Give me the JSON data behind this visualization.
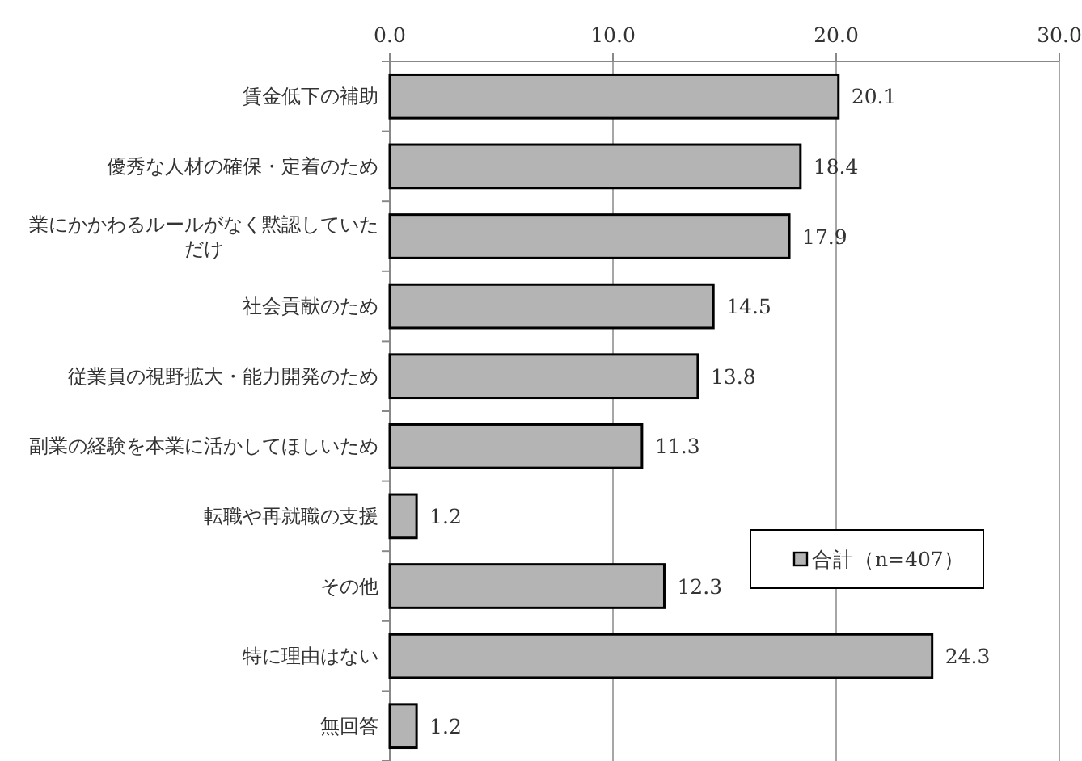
{
  "chart_data": {
    "type": "bar",
    "orientation": "horizontal",
    "categories": [
      "賃金低下の補助",
      "優秀な人材の確保・定着のため",
      "業にかかわるルールがなく黙認していただけ",
      "社会貢献のため",
      "従業員の視野拡大・能力開発のため",
      "副業の経験を本業に活かしてほしいため",
      "転職や再就職の支援",
      "その他",
      "特に理由はない",
      "無回答"
    ],
    "series": [
      {
        "name": "合計（n=407）",
        "color": "#b4b4b4",
        "values": [
          20.1,
          18.4,
          17.9,
          14.5,
          13.8,
          11.3,
          1.2,
          12.3,
          24.3,
          1.2
        ]
      }
    ],
    "xlim": [
      0,
      30
    ],
    "xticks": [
      {
        "value": 0,
        "label": "0.0"
      },
      {
        "value": 10,
        "label": "10.0"
      },
      {
        "value": 20,
        "label": "20.0"
      },
      {
        "value": 30,
        "label": "30.0"
      }
    ],
    "grid": "x",
    "legend": "right",
    "data_labels": true
  }
}
